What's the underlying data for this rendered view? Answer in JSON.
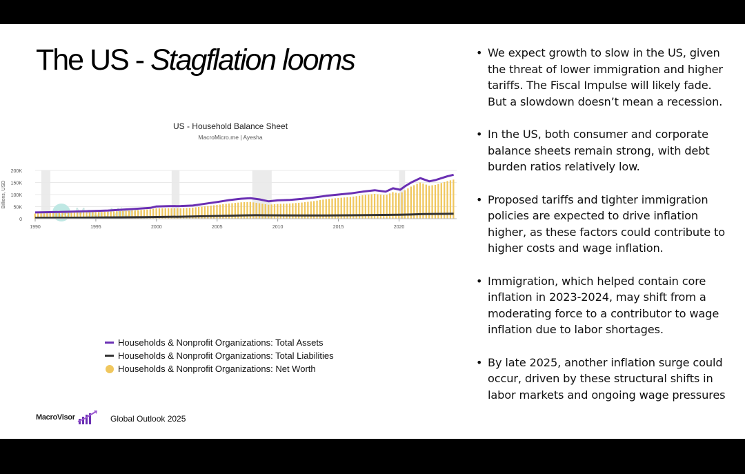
{
  "slide": {
    "title_plain": "The US - ",
    "title_italic": "Stagflation looms",
    "bullets": [
      "We expect growth to slow in the US, given the threat of lower immigration and higher tariffs. The Fiscal Impulse will likely fade. But a slowdown doesn’t mean a recession.",
      "In the US, both consumer and corporate balance sheets remain strong, with debt burden ratios relatively low.",
      "Proposed tariffs and tighter immigration policies are expected to drive inflation higher, as these factors could contribute to higher costs and wage inflation.",
      "Immigration, which helped contain core inflation in 2023-2024, may shift from a moderating force to a contributor to wage inflation due to labor shortages.",
      "By late 2025, another inflation surge could occur, driven by these structural shifts in labor markets and ongoing wage pressures"
    ],
    "footer_brand": "MacroVisor",
    "footer_text": "Global Outlook 2025",
    "watermark": "MacroMicro"
  },
  "chart_data": {
    "type": "line",
    "title": "US - Household Balance Sheet",
    "subtitle": "MacroMicro.me | Ayesha",
    "ylabel": "Billions, USD",
    "xlabel": "",
    "xlim": [
      1990,
      2024.75
    ],
    "ylim": [
      0,
      200000
    ],
    "yticks": [
      0,
      50000,
      100000,
      150000,
      200000
    ],
    "ytick_labels": [
      "0",
      "50K",
      "100K",
      "150K",
      "200K"
    ],
    "xticks": [
      1990,
      1995,
      2000,
      2005,
      2010,
      2015,
      2020
    ],
    "xtick_labels": [
      "1990",
      "1995",
      "2000",
      "2005",
      "2010",
      "2015",
      "2020"
    ],
    "recessions": [
      [
        1990.5,
        1991.25
      ],
      [
        2001.25,
        2001.9
      ],
      [
        2007.9,
        2009.5
      ],
      [
        2020.0,
        2020.5
      ]
    ],
    "grid": true,
    "legend_position": "bottom",
    "colors": {
      "assets": "#6a2fb3",
      "liabilities": "#333333",
      "networth": "#f0c75e",
      "recession": "#ebebeb"
    },
    "series": [
      {
        "name": "Households & Nonprofit Organizations: Total Assets",
        "kind": "line",
        "points": [
          [
            1990,
            26000
          ],
          [
            1992,
            28000
          ],
          [
            1994,
            30500
          ],
          [
            1996,
            34000
          ],
          [
            1998,
            40000
          ],
          [
            1999.5,
            45000
          ],
          [
            2000,
            51000
          ],
          [
            2001,
            52000
          ],
          [
            2002,
            52500
          ],
          [
            2003,
            54500
          ],
          [
            2004,
            62000
          ],
          [
            2005,
            69000
          ],
          [
            2006,
            77000
          ],
          [
            2007,
            83000
          ],
          [
            2007.75,
            85000
          ],
          [
            2008.5,
            80000
          ],
          [
            2009.25,
            72000
          ],
          [
            2010,
            76000
          ],
          [
            2011,
            78000
          ],
          [
            2012,
            82000
          ],
          [
            2013,
            88000
          ],
          [
            2014,
            95000
          ],
          [
            2015,
            100000
          ],
          [
            2016,
            105000
          ],
          [
            2017,
            112000
          ],
          [
            2018,
            118000
          ],
          [
            2018.9,
            112000
          ],
          [
            2019.5,
            126000
          ],
          [
            2020.1,
            120000
          ],
          [
            2020.5,
            135000
          ],
          [
            2021,
            150000
          ],
          [
            2021.75,
            168000
          ],
          [
            2022.5,
            155000
          ],
          [
            2023,
            160000
          ],
          [
            2023.5,
            168000
          ],
          [
            2024,
            176000
          ],
          [
            2024.5,
            182000
          ]
        ]
      },
      {
        "name": "Households & Nonprofit Organizations: Total Liabilities",
        "kind": "line",
        "points": [
          [
            1990,
            3700
          ],
          [
            1993,
            4400
          ],
          [
            1996,
            5300
          ],
          [
            1999,
            6500
          ],
          [
            2002,
            8400
          ],
          [
            2005,
            11500
          ],
          [
            2007,
            13800
          ],
          [
            2008.25,
            14500
          ],
          [
            2010,
            14000
          ],
          [
            2012,
            13500
          ],
          [
            2014,
            13700
          ],
          [
            2016,
            14400
          ],
          [
            2018,
            15500
          ],
          [
            2020,
            16500
          ],
          [
            2021,
            17500
          ],
          [
            2022,
            19200
          ],
          [
            2023.5,
            20000
          ],
          [
            2024.5,
            20500
          ]
        ]
      },
      {
        "name": "Households & Nonprofit Organizations: Net Worth",
        "kind": "bar",
        "points": [
          [
            1990,
            21500
          ],
          [
            1992,
            23500
          ],
          [
            1994,
            26000
          ],
          [
            1996,
            29000
          ],
          [
            1998,
            34000
          ],
          [
            1999.5,
            39000
          ],
          [
            2000,
            43000
          ],
          [
            2001,
            43500
          ],
          [
            2002,
            43000
          ],
          [
            2003,
            46000
          ],
          [
            2004,
            51000
          ],
          [
            2005,
            57000
          ],
          [
            2006,
            63000
          ],
          [
            2007,
            68000
          ],
          [
            2007.75,
            69500
          ],
          [
            2008.5,
            64000
          ],
          [
            2009.25,
            58000
          ],
          [
            2010,
            61000
          ],
          [
            2011,
            63000
          ],
          [
            2012,
            67000
          ],
          [
            2013,
            73000
          ],
          [
            2014,
            81000
          ],
          [
            2015,
            86000
          ],
          [
            2016,
            90000
          ],
          [
            2017,
            97000
          ],
          [
            2018,
            103000
          ],
          [
            2018.9,
            97000
          ],
          [
            2019.5,
            110000
          ],
          [
            2020.1,
            104000
          ],
          [
            2020.5,
            118000
          ],
          [
            2021,
            133000
          ],
          [
            2021.75,
            150000
          ],
          [
            2022.5,
            137000
          ],
          [
            2023,
            140000
          ],
          [
            2023.5,
            148000
          ],
          [
            2024,
            156000
          ],
          [
            2024.5,
            162000
          ]
        ]
      }
    ]
  }
}
